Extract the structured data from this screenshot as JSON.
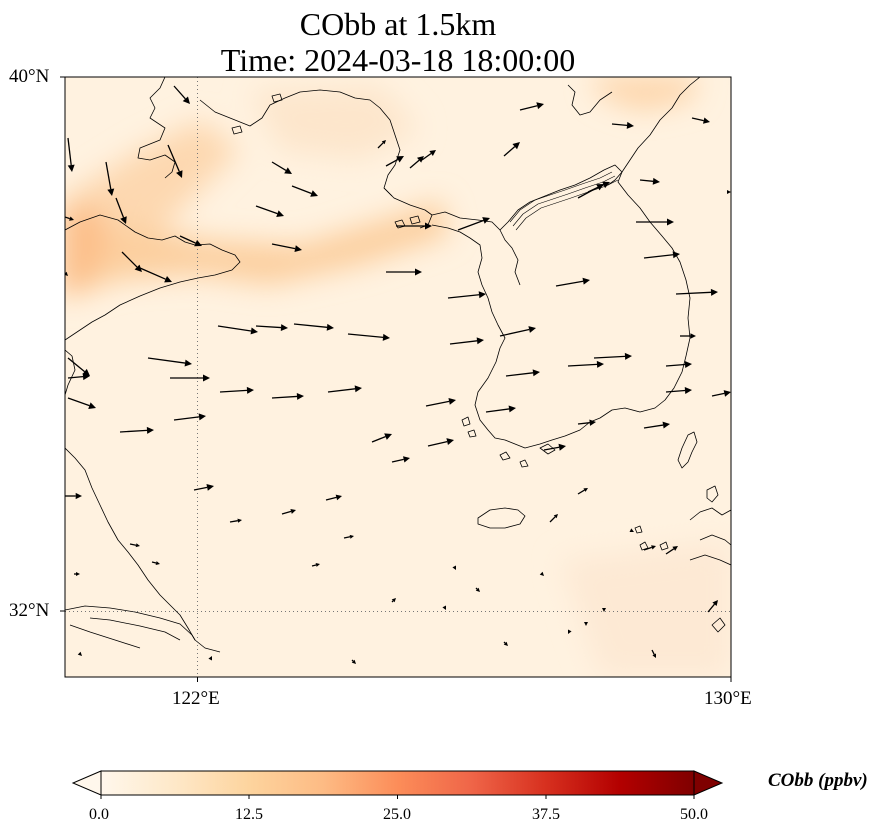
{
  "title": {
    "line1": "CObb at 1.5km",
    "line2": "Time: 2024-03-18 18:00:00"
  },
  "map": {
    "lat_ticks": [
      "40°N",
      "32°N"
    ],
    "lon_ticks": [
      "122°E",
      "130°E"
    ],
    "gridlines": "dotted",
    "field": "CObb",
    "vectors": "wind arrows"
  },
  "colorbar": {
    "label": "CObb (ppbv)",
    "ticks": [
      "0.0",
      "12.5",
      "25.0",
      "37.5",
      "50.0"
    ],
    "colormap": [
      "#fff7ec",
      "#fee8c8",
      "#fdd49e",
      "#fdbb84",
      "#fc8d59",
      "#ef6548",
      "#d7301f",
      "#b30000",
      "#7f0000"
    ],
    "extend": "both"
  }
}
